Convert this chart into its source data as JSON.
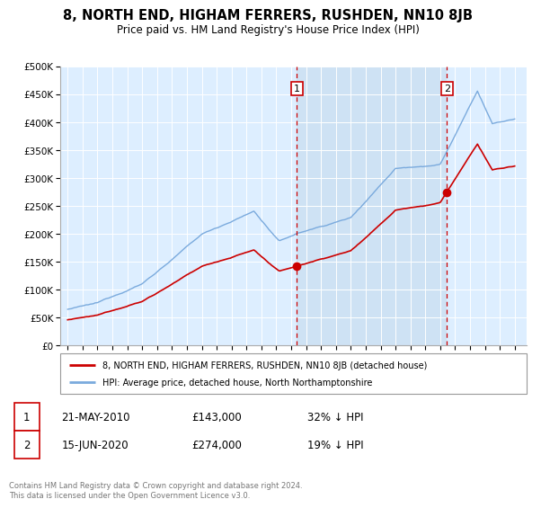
{
  "title": "8, NORTH END, HIGHAM FERRERS, RUSHDEN, NN10 8JB",
  "subtitle": "Price paid vs. HM Land Registry's House Price Index (HPI)",
  "legend_line1": "8, NORTH END, HIGHAM FERRERS, RUSHDEN, NN10 8JB (detached house)",
  "legend_line2": "HPI: Average price, detached house, North Northamptonshire",
  "marker1_date": "21-MAY-2010",
  "marker1_price": "£143,000",
  "marker1_hpi": "32% ↓ HPI",
  "marker1_year": 2010.38,
  "marker1_value": 143000,
  "marker2_date": "15-JUN-2020",
  "marker2_price": "£274,000",
  "marker2_hpi": "19% ↓ HPI",
  "marker2_year": 2020.45,
  "marker2_value": 274000,
  "footer": "Contains HM Land Registry data © Crown copyright and database right 2024.\nThis data is licensed under the Open Government Licence v3.0.",
  "plot_bg_color": "#ddeeff",
  "shade_color": "#c8ddf0",
  "red_color": "#cc0000",
  "blue_color": "#7aaadd",
  "ylim": [
    0,
    500000
  ],
  "xlim_start": 1994.5,
  "xlim_end": 2025.8,
  "title_fontsize": 10.5,
  "subtitle_fontsize": 9
}
